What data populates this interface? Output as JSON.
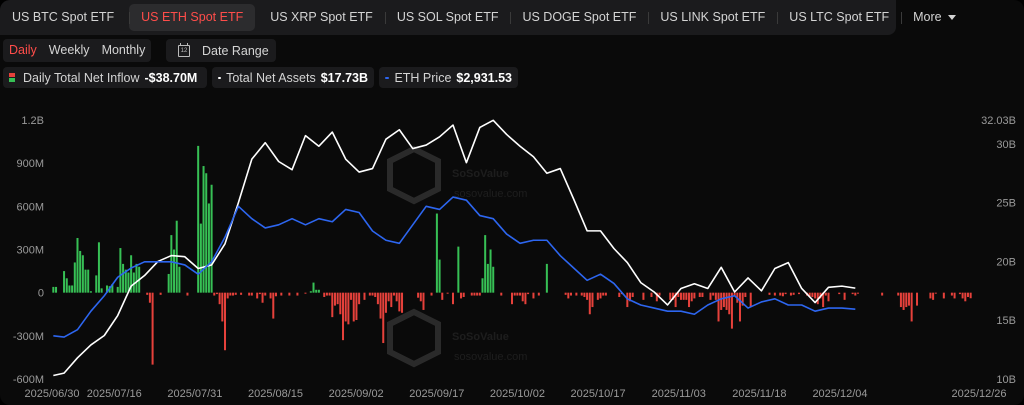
{
  "tabs": [
    "US BTC Spot ETF",
    "US ETH Spot ETF",
    "US XRP Spot ETF",
    "US SOL Spot ETF",
    "US DOGE Spot ETF",
    "US LINK Spot ETF",
    "US LTC Spot ETF",
    "More"
  ],
  "active_tab": 1,
  "period": {
    "daily": "Daily",
    "weekly": "Weekly",
    "monthly": "Monthly",
    "active": "daily"
  },
  "date_range_label": "Date Range",
  "calendar_icon_text": "12",
  "legend": {
    "inflow_label": "Daily Total Net Inflow",
    "inflow_value": "-$38.70M",
    "assets_label": "Total Net Assets",
    "assets_value": "$17.73B",
    "price_label": "ETH Price",
    "price_value": "$2,931.53"
  },
  "watermark": {
    "brand": "SoSoValue",
    "site": "sosovalue.com"
  },
  "colors": {
    "positive": "#37c055",
    "negative": "#e6413b",
    "assets_line": "#ffffff",
    "price_line": "#2d66f0",
    "active": "#ff4d4a"
  },
  "chart_data": {
    "type": "bar",
    "left_axis": {
      "ticks": [
        "1.2B",
        "900M",
        "600M",
        "300M",
        "0",
        "-300M",
        "-600M"
      ],
      "values": [
        1200,
        900,
        600,
        300,
        0,
        -300,
        -600
      ],
      "unit": "M USD"
    },
    "right_axis": {
      "ticks": [
        "32.03B",
        "30B",
        "25B",
        "20B",
        "15B",
        "10B"
      ],
      "values": [
        32.03,
        30,
        25,
        20,
        15,
        10
      ],
      "unit": "B USD"
    },
    "x_ticks": [
      "2025/06/30",
      "2025/07/16",
      "2025/07/31",
      "2025/08/15",
      "2025/09/02",
      "2025/09/17",
      "2025/10/02",
      "2025/10/17",
      "2025/11/03",
      "2025/11/18",
      "2025/12/04",
      "2025/12/26"
    ],
    "series": [
      {
        "name": "Daily Total Net Inflow",
        "kind": "bar",
        "axis": "left",
        "values": [
          40,
          40,
          0,
          0,
          150,
          100,
          50,
          50,
          210,
          380,
          290,
          260,
          160,
          160,
          10,
          0,
          120,
          350,
          30,
          0,
          50,
          45,
          60,
          0,
          40,
          310,
          200,
          160,
          140,
          260,
          140,
          200,
          180,
          0,
          0,
          -15,
          -70,
          -500,
          0,
          0,
          -15,
          0,
          0,
          130,
          400,
          300,
          500,
          180,
          0,
          0,
          -20,
          0,
          0,
          0,
          1020,
          480,
          880,
          830,
          620,
          750,
          -20,
          -10,
          -80,
          -200,
          -400,
          -40,
          -20,
          -20,
          -15,
          0,
          -15,
          0,
          0,
          -20,
          -20,
          0,
          -40,
          -10,
          -70,
          -20,
          0,
          -40,
          -180,
          -25,
          0,
          -20,
          0,
          0,
          -20,
          0,
          0,
          -20,
          0,
          0,
          -5,
          0,
          10,
          70,
          20,
          20,
          0,
          -30,
          -20,
          -20,
          -170,
          -90,
          -80,
          -150,
          -330,
          -200,
          -220,
          -50,
          -200,
          -190,
          -80,
          0,
          -50,
          0,
          -20,
          -20,
          -30,
          -80,
          -180,
          -350,
          -140,
          -60,
          -100,
          -20,
          -60,
          -130,
          -140,
          0,
          0,
          0,
          0,
          0,
          -35,
          -60,
          -120,
          0,
          0,
          -20,
          0,
          550,
          230,
          -50,
          0,
          -5,
          0,
          -80,
          0,
          320,
          -40,
          -30,
          0,
          0,
          -20,
          -20,
          -20,
          -20,
          100,
          400,
          200,
          300,
          180,
          0,
          0,
          -20,
          0,
          0,
          0,
          -80,
          -20,
          -20,
          -20,
          -60,
          -80,
          -10,
          0,
          -40,
          0,
          -20,
          0,
          0,
          200,
          0,
          0,
          0,
          0,
          0,
          0,
          -15,
          -40,
          -20,
          0,
          -20,
          0,
          -20,
          -30,
          -50,
          -150,
          -100,
          0,
          -50,
          -40,
          -20,
          -20,
          0,
          0,
          0,
          0,
          -30,
          -10,
          0,
          -100,
          -60,
          -30,
          0,
          0,
          0,
          -50,
          0,
          0,
          -30,
          0,
          -60,
          -20,
          0,
          0,
          0,
          -50,
          -50,
          -100,
          -30,
          -50,
          -50,
          -50,
          -100,
          -60,
          -40,
          0,
          -30,
          -30,
          0,
          0,
          -50,
          -20,
          -50,
          -200,
          -120,
          -100,
          -120,
          -150,
          -250,
          -20,
          -70,
          -200,
          -90,
          -30,
          0,
          -100,
          0,
          0,
          0,
          0,
          0,
          0,
          -15,
          0,
          -20,
          0,
          -20,
          -25,
          -10,
          0,
          -20,
          -15,
          0,
          -10,
          0,
          0,
          -20,
          -25,
          -30,
          -40,
          -80,
          -40,
          -100,
          -20,
          -60,
          0,
          0,
          0,
          -10,
          0,
          -50,
          0,
          0,
          -10,
          -20,
          -5,
          0,
          0,
          0,
          0,
          0,
          0,
          0,
          0,
          -20,
          0,
          0,
          0,
          0,
          0,
          -20,
          -100,
          -120,
          -100,
          -90,
          -200,
          0,
          -90,
          0,
          0,
          0,
          0,
          -40,
          -50,
          -5,
          0,
          0,
          -40,
          0,
          0,
          -20,
          -40,
          0,
          -10,
          -40,
          -60,
          -30,
          -38.7
        ]
      },
      {
        "name": "Total Net Assets",
        "kind": "line",
        "axis": "right",
        "x": [
          0,
          4,
          9,
          14,
          19,
          24,
          29,
          34,
          39,
          44,
          49,
          54,
          59,
          64,
          69,
          74,
          79,
          84,
          89,
          94,
          99,
          104,
          109,
          114,
          119,
          124,
          129,
          134,
          139,
          144,
          149,
          154,
          159,
          164,
          169,
          174,
          179,
          184,
          189,
          194,
          199,
          204,
          209,
          214,
          219,
          224,
          229,
          234,
          239,
          244,
          249,
          254,
          259,
          264,
          269,
          274,
          279,
          284,
          289,
          294,
          299
        ],
        "values": [
          10.3,
          10.5,
          11.8,
          12.9,
          13.7,
          15.4,
          17.9,
          18.8,
          20.0,
          20.5,
          20.4,
          19.4,
          19.7,
          21.5,
          25.0,
          28.7,
          30.1,
          28.5,
          27.8,
          30.7,
          29.8,
          31.0,
          28.7,
          27.6,
          27.9,
          30.4,
          31.2,
          29.6,
          29.9,
          30.6,
          31.6,
          28.4,
          31.4,
          32.0,
          30.8,
          29.8,
          28.9,
          27.5,
          27.9,
          25.3,
          22.6,
          22.6,
          21.1,
          19.9,
          18.2,
          17.4,
          16.3,
          17.7,
          18.1,
          17.7,
          19.5,
          17.4,
          18.6,
          17.5,
          19.4,
          19.9,
          17.7,
          16.5,
          17.8,
          17.9,
          17.73
        ]
      },
      {
        "name": "ETH Price",
        "kind": "line",
        "axis": "right",
        "x": [
          0,
          4,
          9,
          14,
          19,
          24,
          29,
          34,
          39,
          44,
          49,
          54,
          59,
          64,
          69,
          74,
          79,
          84,
          89,
          94,
          99,
          104,
          109,
          114,
          119,
          124,
          129,
          134,
          139,
          144,
          149,
          154,
          159,
          164,
          169,
          174,
          179,
          184,
          189,
          194,
          199,
          204,
          209,
          214,
          219,
          224,
          229,
          234,
          239,
          244,
          249,
          254,
          259,
          264,
          269,
          274,
          279,
          284,
          289,
          294,
          299
        ],
        "values": [
          2500,
          2480,
          2600,
          2900,
          3150,
          3450,
          3600,
          3700,
          3700,
          3700,
          3650,
          3500,
          3700,
          4100,
          4600,
          4400,
          4250,
          4300,
          4400,
          4300,
          4400,
          4350,
          4550,
          4500,
          4200,
          4050,
          4000,
          4300,
          4600,
          4550,
          4750,
          4700,
          4450,
          4400,
          4150,
          4000,
          4050,
          4050,
          3800,
          3600,
          3400,
          3500,
          3350,
          3100,
          3000,
          2950,
          2900,
          2900,
          2850,
          3000,
          3100,
          3150,
          2950,
          3050,
          3100,
          3000,
          3000,
          2900,
          2950,
          2950,
          2931.53
        ]
      }
    ],
    "ylim_left": [
      -600,
      1200
    ],
    "ylim_right": [
      10,
      32.03
    ],
    "grid": false
  }
}
